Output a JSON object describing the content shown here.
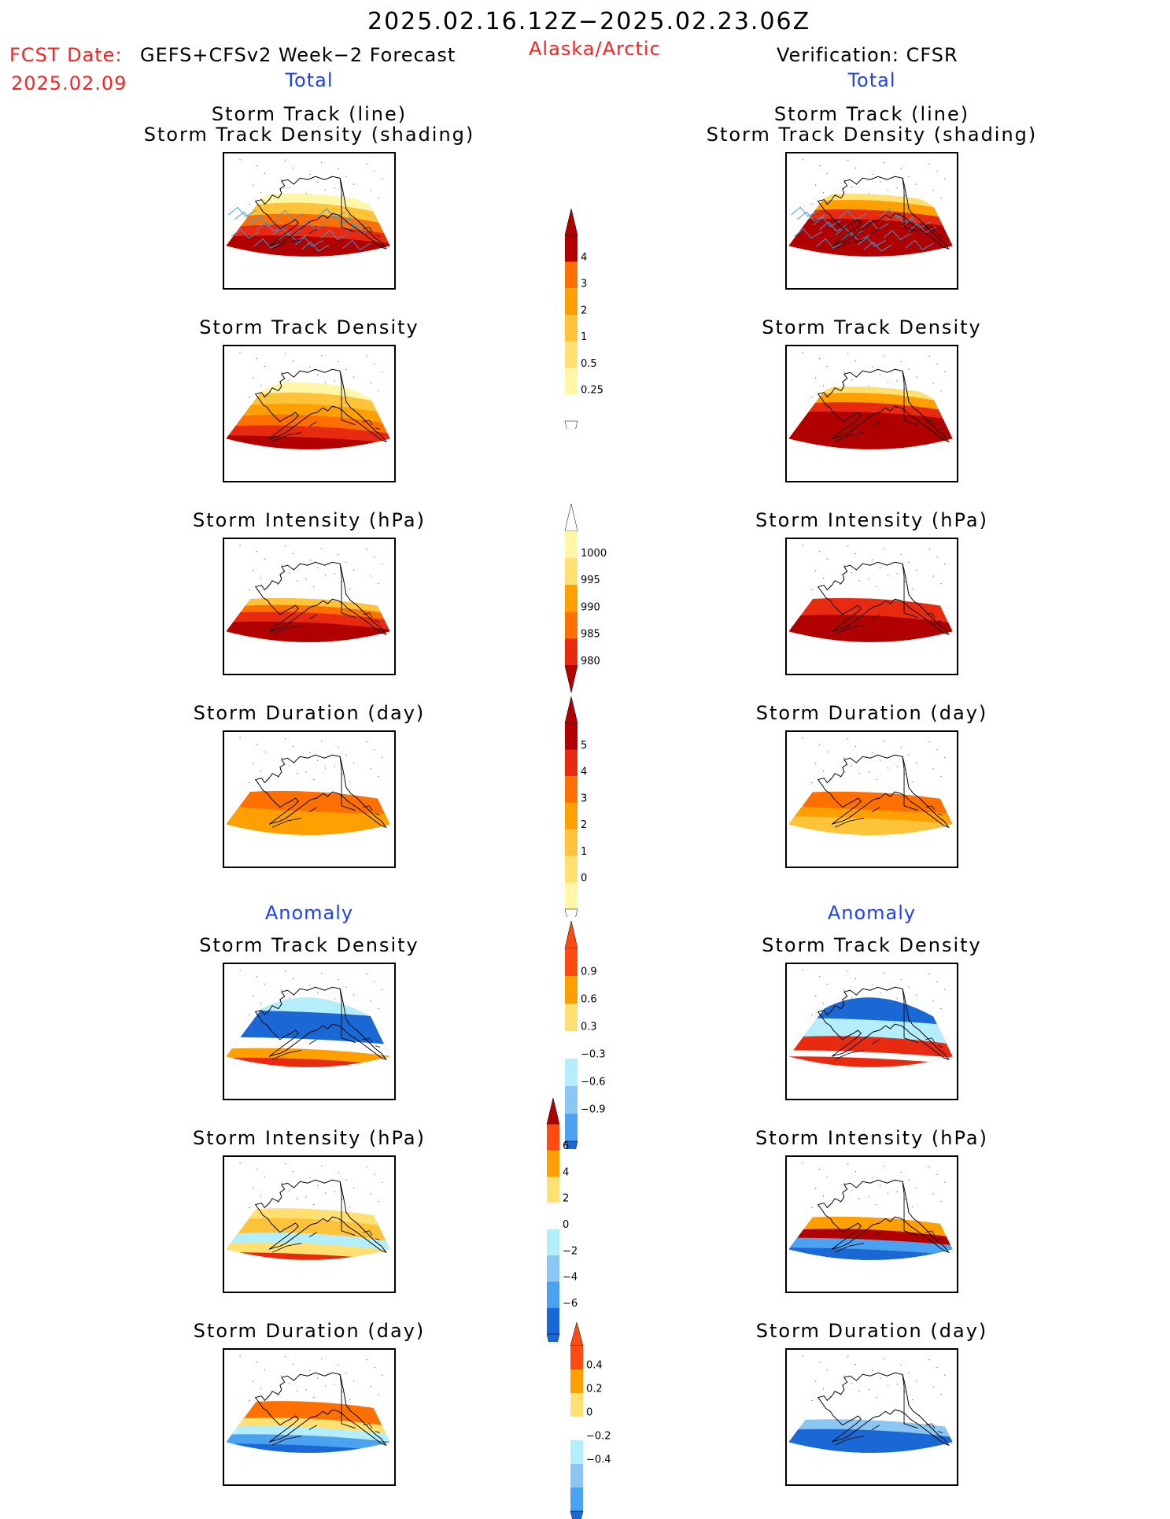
{
  "header": {
    "period": "2025.02.16.12Z−2025.02.23.06Z",
    "fcst_label": "FCST Date:",
    "fcst_model": "GEFS+CFSv2 Week−2 Forecast",
    "fcst_date": "2025.02.09",
    "region": "Alaska/Arctic",
    "verification": "Verification: CFSR",
    "left_section": "Total",
    "right_section": "Total",
    "left_anomaly": "Anomaly",
    "right_anomaly": "Anomaly"
  },
  "colors": {
    "c1": "#fff6a8",
    "c2": "#ffe070",
    "c3": "#ffc33a",
    "c4": "#ffa000",
    "c5": "#ff7000",
    "c6": "#e82a10",
    "c7": "#b00000",
    "c8": "#8c0000",
    "lb": "#b4eefa",
    "mb": "#8cc6f2",
    "b": "#4aa2f0",
    "db": "#1a68d6",
    "track": "#3f9ad8"
  },
  "panels": {
    "left": [
      {
        "title_l1": "Storm Track (line)",
        "title_l2": "Storm Track Density (shading)"
      },
      {
        "title_l1": "Storm Track Density"
      },
      {
        "title_l1": "Storm Intensity (hPa)"
      },
      {
        "title_l1": "Storm Duration (day)"
      },
      {
        "title_l1": "Storm Track Density"
      },
      {
        "title_l1": "Storm Intensity (hPa)"
      },
      {
        "title_l1": "Storm Duration (day)"
      }
    ],
    "right": [
      {
        "title_l1": "Storm Track (line)",
        "title_l2": "Storm Track Density (shading)"
      },
      {
        "title_l1": "Storm Track Density"
      },
      {
        "title_l1": "Storm Intensity (hPa)"
      },
      {
        "title_l1": "Storm Duration (day)"
      },
      {
        "title_l1": "Storm Track Density"
      },
      {
        "title_l1": "Storm Intensity (hPa)"
      },
      {
        "title_l1": "Storm Duration (day)"
      }
    ]
  },
  "chart_data": [
    {
      "type": "heatmap",
      "title": "Storm Track (line) / Storm Track Density (shading)",
      "source": "GEFS+CFSv2 Week-2 Forecast",
      "section": "Total"
    },
    {
      "type": "heatmap",
      "title": "Storm Track Density",
      "source": "GEFS+CFSv2 Week-2 Forecast",
      "section": "Total"
    },
    {
      "type": "heatmap",
      "title": "Storm Intensity (hPa)",
      "source": "GEFS+CFSv2 Week-2 Forecast",
      "section": "Total"
    },
    {
      "type": "heatmap",
      "title": "Storm Duration (day)",
      "source": "GEFS+CFSv2 Week-2 Forecast",
      "section": "Total"
    },
    {
      "type": "heatmap",
      "title": "Storm Track Density",
      "source": "GEFS+CFSv2 Week-2 Forecast",
      "section": "Anomaly"
    },
    {
      "type": "heatmap",
      "title": "Storm Intensity (hPa)",
      "source": "GEFS+CFSv2 Week-2 Forecast",
      "section": "Anomaly"
    },
    {
      "type": "heatmap",
      "title": "Storm Duration (day)",
      "source": "GEFS+CFSv2 Week-2 Forecast",
      "section": "Anomaly"
    },
    {
      "type": "heatmap",
      "title": "Storm Track (line) / Storm Track Density (shading)",
      "source": "Verification: CFSR",
      "section": "Total"
    },
    {
      "type": "heatmap",
      "title": "Storm Track Density",
      "source": "Verification: CFSR",
      "section": "Total"
    },
    {
      "type": "heatmap",
      "title": "Storm Intensity (hPa)",
      "source": "Verification: CFSR",
      "section": "Total"
    },
    {
      "type": "heatmap",
      "title": "Storm Duration (day)",
      "source": "Verification: CFSR",
      "section": "Total"
    },
    {
      "type": "heatmap",
      "title": "Storm Track Density",
      "source": "Verification: CFSR",
      "section": "Anomaly"
    },
    {
      "type": "heatmap",
      "title": "Storm Intensity (hPa)",
      "source": "Verification: CFSR",
      "section": "Anomaly"
    },
    {
      "type": "heatmap",
      "title": "Storm Duration (day)",
      "source": "Verification: CFSR",
      "section": "Anomaly"
    }
  ],
  "colorbars": [
    {
      "name": "track-density",
      "labels": [
        "4",
        "3",
        "2",
        "1",
        "0.5",
        "0.25"
      ],
      "colors": [
        "#ff7000",
        "#ffa000",
        "#ffc33a",
        "#ffe070",
        "#fff6a8"
      ],
      "top": "#b00000",
      "bottom": "#ffffff",
      "top_tri": "#b00000"
    },
    {
      "name": "intensity",
      "labels": [
        "1000",
        "995",
        "990",
        "985",
        "980"
      ],
      "colors": [
        "#ffe070",
        "#ffa000",
        "#ff7000",
        "#e82a10"
      ],
      "top": "#fff6a8",
      "top_tri": "#ffffff",
      "bottom_tri": "#b00000"
    },
    {
      "name": "duration",
      "labels": [
        "5",
        "4",
        "3",
        "2",
        "1",
        "0"
      ],
      "colors": [
        "#e82a10",
        "#ff7000",
        "#ffa000",
        "#ffc33a",
        "#ffe070"
      ],
      "top": "#b00000",
      "top_tri": "#b00000",
      "bottom": "#fff6a8",
      "bottom_tri": "#ffffff"
    },
    {
      "name": "anom-density",
      "labels": [
        "0.9",
        "0.6",
        "0.3",
        "−0.3",
        "−0.6",
        "−0.9"
      ],
      "colors": [
        "#ffa000",
        "#ffe070",
        "#ffffff",
        "#b4eefa",
        "#8cc6f2"
      ],
      "top": "#ff4a10",
      "top_tri": "#ff4a10",
      "bottom": "#4aa2f0",
      "bottom_tri": "#1a68d6"
    },
    {
      "name": "anom-intensity",
      "labels": [
        "6",
        "4",
        "2",
        "0",
        "−2",
        "−4",
        "−6"
      ],
      "colors": [
        "#ffa000",
        "#ffe070",
        "#ffffff",
        "#b4eefa",
        "#8cc6f2",
        "#4aa2f0"
      ],
      "top": "#ff4a10",
      "top_tri": "#b00000",
      "bottom": "#1a68d6",
      "bottom_tri": "#1a68d6"
    },
    {
      "name": "anom-duration",
      "labels": [
        "0.4",
        "0.2",
        "0",
        "−0.2",
        "−0.4"
      ],
      "colors": [
        "#ffa000",
        "#ffe070",
        "#ffffff",
        "#b4eefa",
        "#8cc6f2"
      ],
      "top": "#ff4a10",
      "top_tri": "#ff4a10",
      "bottom": "#4aa2f0",
      "bottom_tri": "#1a68d6"
    }
  ]
}
